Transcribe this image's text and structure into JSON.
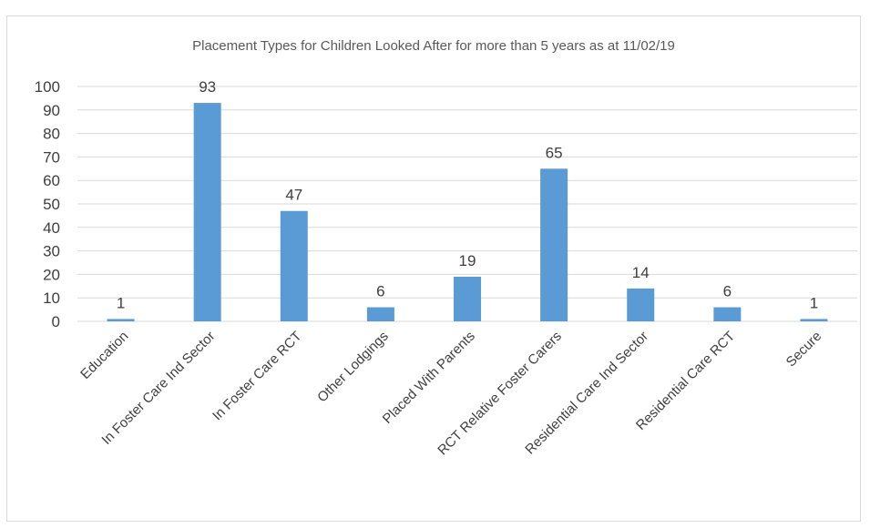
{
  "chart_data": {
    "type": "bar",
    "title": "Placement Types for Children Looked After for more than 5 years as at 11/02/19",
    "xlabel": "",
    "ylabel": "",
    "ylim": [
      0,
      100
    ],
    "y_ticks": [
      0,
      10,
      20,
      30,
      40,
      50,
      60,
      70,
      80,
      90,
      100
    ],
    "grid": true,
    "legend": "none",
    "bar_color": "#5b9bd5",
    "categories": [
      "Education",
      "In Foster Care Ind Sector",
      "In Foster Care RCT",
      "Other Lodgings",
      "Placed With Parents",
      "RCT Relative Foster Carers",
      "Residential Care Ind Sector",
      "Residential Care RCT",
      "Secure"
    ],
    "values": [
      1,
      93,
      47,
      6,
      19,
      65,
      14,
      6,
      1
    ],
    "data_labels": [
      "1",
      "93",
      "47",
      "6",
      "19",
      "65",
      "14",
      "6",
      "1"
    ]
  }
}
